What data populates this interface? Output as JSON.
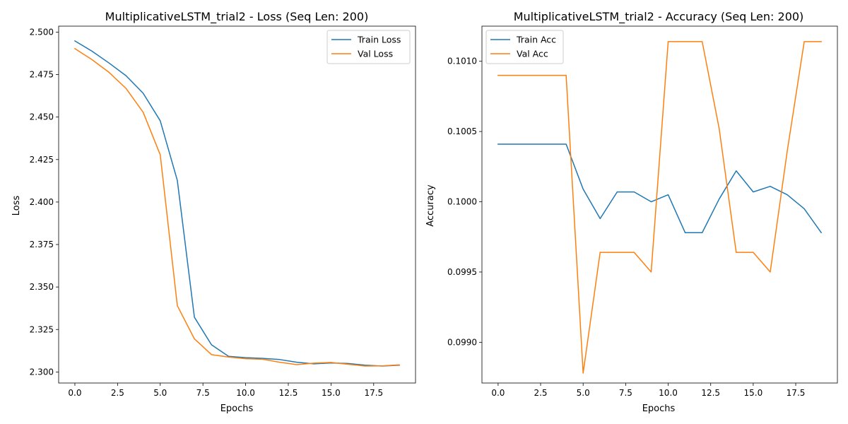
{
  "colors": {
    "train": "#1f77b4",
    "val": "#ff7f0e",
    "legend_border": "#cccccc"
  },
  "chart_data": [
    {
      "type": "line",
      "title": "MultiplicativeLSTM_trial2 - Loss (Seq Len: 200)",
      "xlabel": "Epochs",
      "ylabel": "Loss",
      "xlim": [
        -0.95,
        19.95
      ],
      "ylim": [
        2.2935,
        2.5035
      ],
      "xticks": [
        0,
        2.5,
        5,
        7.5,
        10,
        12.5,
        15,
        17.5
      ],
      "xtick_labels": [
        "0.0",
        "2.5",
        "5.0",
        "7.5",
        "10.0",
        "12.5",
        "15.0",
        "17.5"
      ],
      "yticks": [
        2.3,
        2.325,
        2.35,
        2.375,
        2.4,
        2.425,
        2.45,
        2.475,
        2.5
      ],
      "ytick_labels": [
        "2.300",
        "2.325",
        "2.350",
        "2.375",
        "2.400",
        "2.425",
        "2.450",
        "2.475",
        "2.500"
      ],
      "grid": false,
      "legend_position": "top-right",
      "x": [
        0,
        1,
        2,
        3,
        4,
        5,
        6,
        7,
        8,
        9,
        10,
        11,
        12,
        13,
        14,
        15,
        16,
        17,
        18,
        19
      ],
      "series": [
        {
          "name": "Train Loss",
          "color_key": "train",
          "values": [
            2.4948,
            2.4888,
            2.4818,
            2.4743,
            2.464,
            2.4478,
            2.4127,
            2.3322,
            2.316,
            2.3092,
            2.3084,
            2.308,
            2.3073,
            2.3057,
            2.3048,
            2.3053,
            2.305,
            2.304,
            2.3035,
            2.304
          ]
        },
        {
          "name": "Val Loss",
          "color_key": "val",
          "values": [
            2.4903,
            2.4838,
            2.4763,
            2.4668,
            2.4528,
            2.4278,
            2.339,
            2.3195,
            2.3102,
            2.3088,
            2.3078,
            2.3075,
            2.3057,
            2.3043,
            2.3052,
            2.3056,
            2.3045,
            2.3035,
            2.3036,
            2.3042
          ]
        }
      ]
    },
    {
      "type": "line",
      "title": "MultiplicativeLSTM_trial2 - Accuracy (Seq Len: 200)",
      "xlabel": "Epochs",
      "ylabel": "Accuracy",
      "xlim": [
        -0.95,
        19.95
      ],
      "ylim": [
        0.09871,
        0.10125
      ],
      "xticks": [
        0,
        2.5,
        5,
        7.5,
        10,
        12.5,
        15,
        17.5
      ],
      "xtick_labels": [
        "0.0",
        "2.5",
        "5.0",
        "7.5",
        "10.0",
        "12.5",
        "15.0",
        "17.5"
      ],
      "yticks": [
        0.099,
        0.0995,
        0.1,
        0.1005,
        0.101
      ],
      "ytick_labels": [
        "0.0990",
        "0.0995",
        "0.1000",
        "0.1005",
        "0.1010"
      ],
      "grid": false,
      "legend_position": "top-left",
      "x": [
        0,
        1,
        2,
        3,
        4,
        5,
        6,
        7,
        8,
        9,
        10,
        11,
        12,
        13,
        14,
        15,
        16,
        17,
        18,
        19
      ],
      "series": [
        {
          "name": "Train Acc",
          "color_key": "train",
          "values": [
            0.10041,
            0.10041,
            0.10041,
            0.10041,
            0.10041,
            0.10009,
            0.09988,
            0.10007,
            0.10007,
            0.1,
            0.10005,
            0.09978,
            0.09978,
            0.10002,
            0.10022,
            0.10007,
            0.10011,
            0.10005,
            0.09995,
            0.09978
          ]
        },
        {
          "name": "Val Acc",
          "color_key": "val",
          "values": [
            0.1009,
            0.1009,
            0.1009,
            0.1009,
            0.1009,
            0.09878,
            0.09964,
            0.09964,
            0.09964,
            0.0995,
            0.10114,
            0.10114,
            0.10114,
            0.10052,
            0.09964,
            0.09964,
            0.0995,
            0.10036,
            0.10114,
            0.10114
          ]
        }
      ]
    }
  ]
}
